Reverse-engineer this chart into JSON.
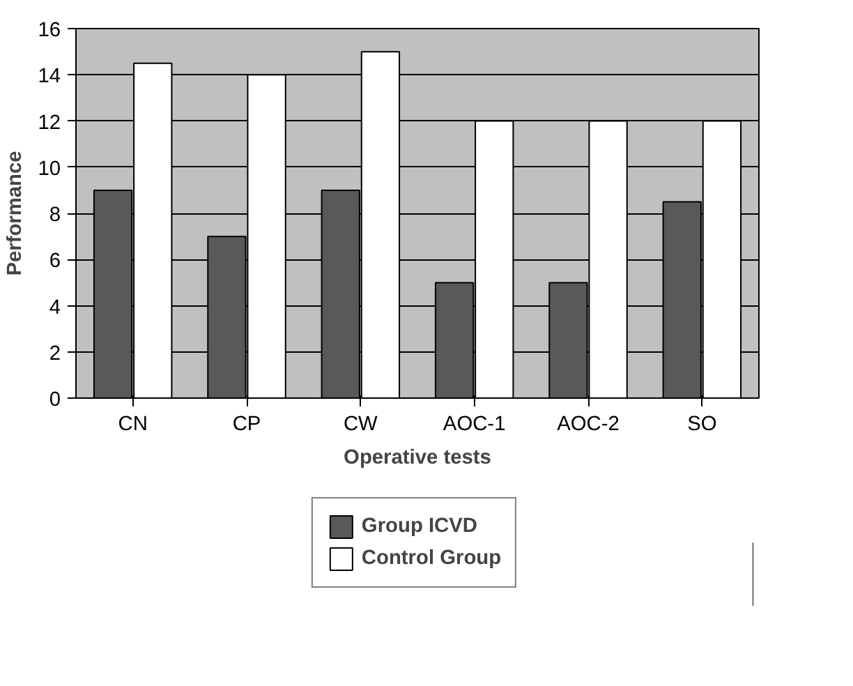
{
  "chart_data": {
    "type": "bar",
    "xlabel": "Operative tests",
    "ylabel": "Performance",
    "categories": [
      "CN",
      "CP",
      "CW",
      "AOC-1",
      "AOC-2",
      "SO"
    ],
    "series": [
      {
        "name": "Group ICVD",
        "color": "#595959",
        "values": [
          9,
          7,
          9,
          5,
          5,
          8.5
        ]
      },
      {
        "name": "Control Group",
        "color": "#ffffff",
        "values": [
          14.5,
          14,
          15,
          12,
          12,
          12
        ]
      }
    ],
    "ylim": [
      0,
      16
    ],
    "yticks": [
      0,
      2,
      4,
      6,
      8,
      10,
      12,
      14,
      16
    ],
    "grid": "y",
    "legend": "bottom"
  }
}
